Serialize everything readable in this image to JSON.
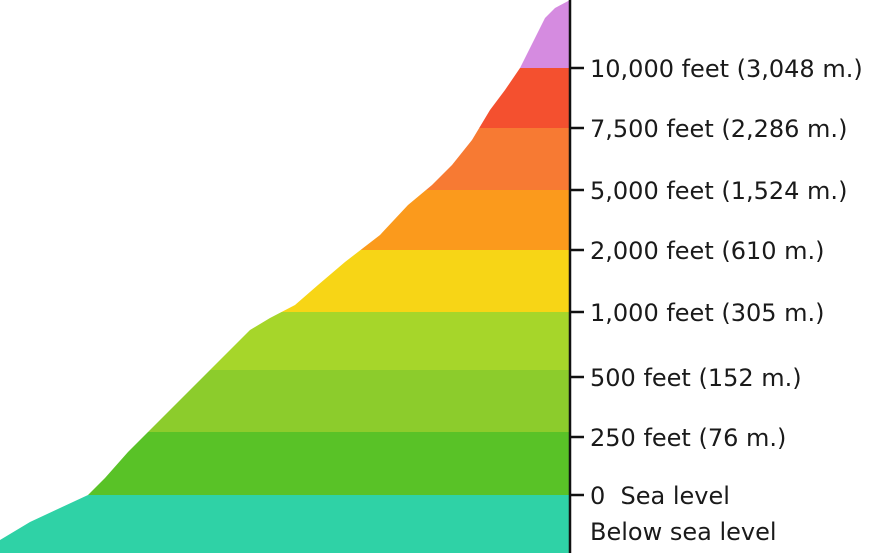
{
  "legend": {
    "levels": [
      {
        "label": "10,000 feet (3,048 m.)",
        "color": "#d58be0"
      },
      {
        "label": "7,500 feet (2,286 m.)",
        "color": "#f4502f"
      },
      {
        "label": "5,000 feet (1,524 m.)",
        "color": "#f77a33"
      },
      {
        "label": "2,000 feet (610 m.)",
        "color": "#fb9a1c"
      },
      {
        "label": "1,000 feet (305 m.)",
        "color": "#f7d516"
      },
      {
        "label": "500 feet (152 m.)",
        "color": "#a6d62a"
      },
      {
        "label": "250 feet (76 m.)",
        "color": "#8ccc2c"
      },
      {
        "label": "0  Sea level",
        "color": "#59c227"
      }
    ],
    "below_sea_level": {
      "label": "Below sea level",
      "color": "#2fd2a6"
    }
  }
}
